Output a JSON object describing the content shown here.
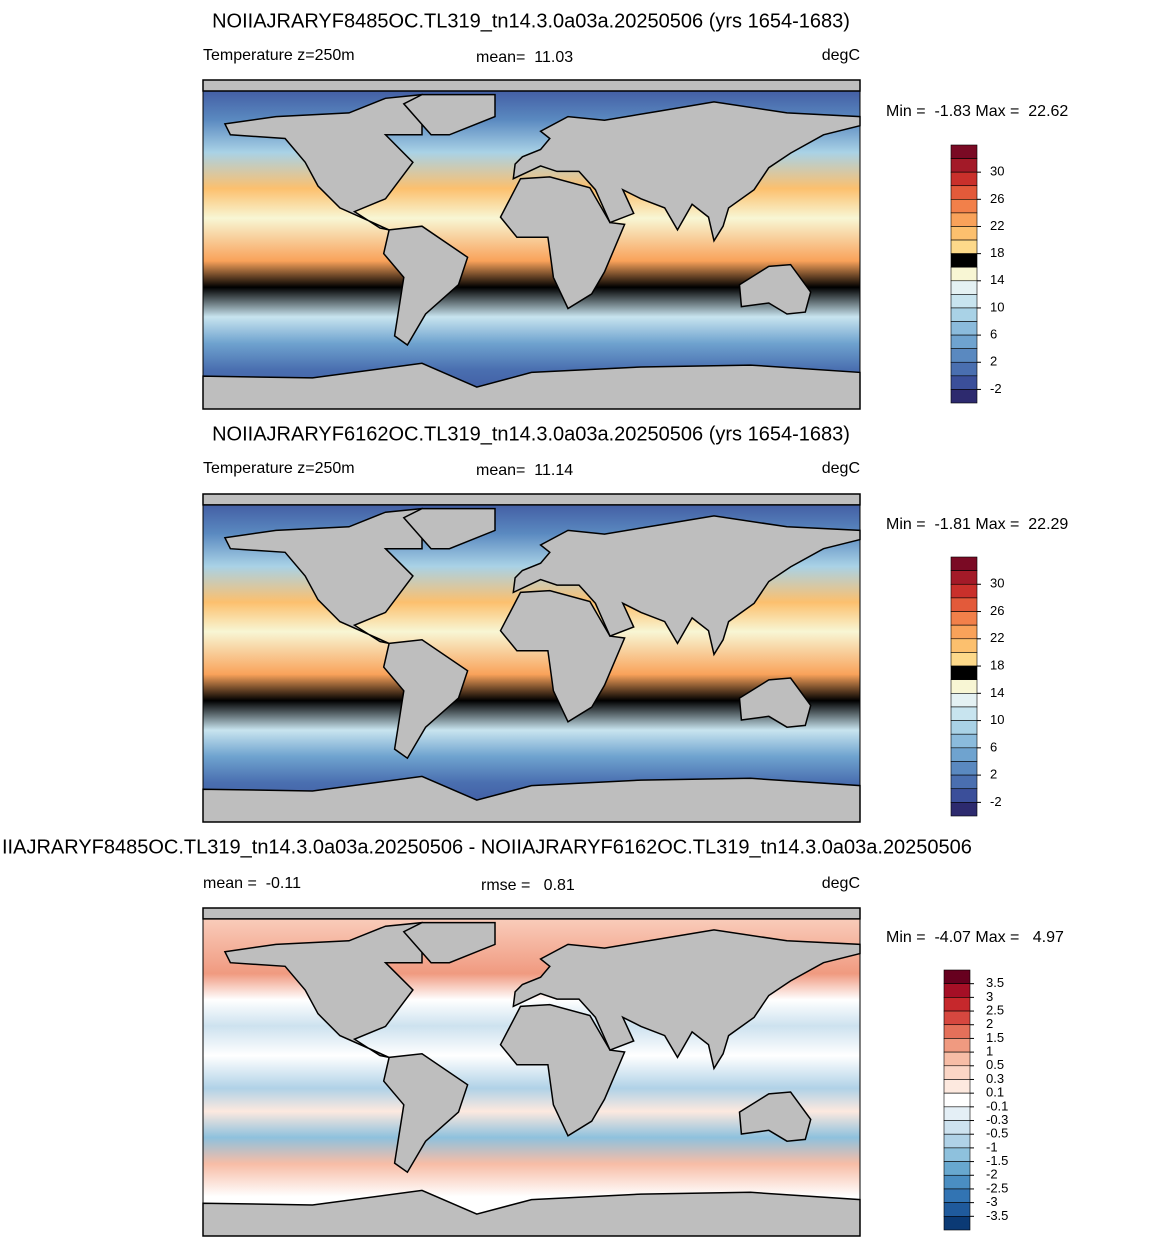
{
  "panels": [
    {
      "title": "NOIIAJRARYF8485OC.TL319_tn14.3.0a03a.20250506 (yrs 1654-1683)",
      "left_label": "Temperature z=250m",
      "center_label": "mean=  11.03",
      "units": "degC",
      "minmax": "Min =  -1.83 Max =  22.62",
      "colorbar": {
        "levels": [
          30,
          26,
          22,
          18,
          14,
          10,
          6,
          2,
          -2
        ],
        "colors": [
          "#7a0a24",
          "#a31a28",
          "#c9302b",
          "#e35a3a",
          "#f2804a",
          "#f9a25a",
          "#fcc06e",
          "#fdd98a",
          "#fcec a8",
          "#f8f6d4",
          "#e4f1f3",
          "#c8e4ef",
          "#a9d2e6",
          "#8bbbdc",
          "#6fa3cf",
          "#5a89c0",
          "#4a6fb0",
          "#3b4f9a",
          "#2d2a6e"
        ]
      }
    },
    {
      "title": "NOIIAJRARYF6162OC.TL319_tn14.3.0a03a.20250506 (yrs 1654-1683)",
      "left_label": "Temperature z=250m",
      "center_label": "mean=  11.14",
      "units": "degC",
      "minmax": "Min =  -1.81 Max =  22.29",
      "colorbar": {
        "levels": [
          30,
          26,
          22,
          18,
          14,
          10,
          6,
          2,
          -2
        ],
        "colors": [
          "#7a0a24",
          "#a31a28",
          "#c9302b",
          "#e35a3a",
          "#f2804a",
          "#f9a25a",
          "#fcc06e",
          "#fdd98a",
          "#fcec a8",
          "#f8f6d4",
          "#e4f1f3",
          "#c8e4ef",
          "#a9d2e6",
          "#8bbbdc",
          "#6fa3cf",
          "#5a89c0",
          "#4a6fb0",
          "#3b4f9a",
          "#2d2a6e"
        ]
      }
    },
    {
      "title": "IIAJRARYF8485OC.TL319_tn14.3.0a03a.20250506 - NOIIAJRARYF6162OC.TL319_tn14.3.0a03a.20250506",
      "left_label": "mean =  -0.11",
      "center_label": "rmse =   0.81",
      "units": "degC",
      "minmax": "Min =  -4.07 Max =   4.97",
      "colorbar": {
        "levels": [
          3.5,
          3,
          2.5,
          2,
          1.5,
          1,
          0.5,
          0.3,
          0.1,
          -0.1,
          -0.3,
          -0.5,
          -1,
          -1.5,
          -2,
          -2.5,
          -3,
          -3.5
        ],
        "colors": [
          "#67001f",
          "#a50f26",
          "#c6282c",
          "#d6473f",
          "#e4705a",
          "#f09a80",
          "#f7bda6",
          "#fbd6c6",
          "#fde9df",
          "#ffffff",
          "#e4eff6",
          "#cde2ef",
          "#b0d2e7",
          "#8ec1dd",
          "#68a8cf",
          "#4a8ec2",
          "#3274b3",
          "#1f5a9c",
          "#0b3a75"
        ]
      }
    }
  ]
}
